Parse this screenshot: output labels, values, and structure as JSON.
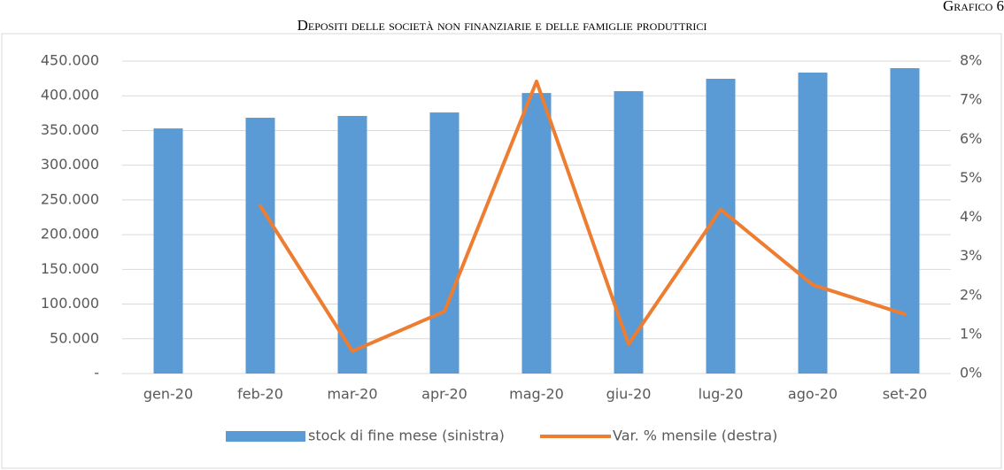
{
  "chart_data": {
    "type": "bar_line",
    "corner_label": "Grafico 6",
    "title": "Depositi delle società non finanziarie e delle famiglie produttrici",
    "categories": [
      "gen-20",
      "feb-20",
      "mar-20",
      "apr-20",
      "mag-20",
      "giu-20",
      "lug-20",
      "ago-20",
      "set-20"
    ],
    "series": [
      {
        "name": "stock di fine mese (sinistra)",
        "type": "bar",
        "color": "#5b9bd5",
        "axis": "y",
        "values": [
          353000,
          368400,
          371000,
          376000,
          404000,
          406700,
          424500,
          433400,
          439800
        ]
      },
      {
        "name": "Var. % mensile (destra)",
        "type": "line",
        "color": "#ed7d31",
        "axis": "y2",
        "values": [
          null,
          4.29,
          0.57,
          1.59,
          7.48,
          0.75,
          4.2,
          2.27,
          1.52
        ]
      }
    ],
    "ylim": [
      0,
      450000
    ],
    "yticks": [
      {
        "value": 0,
        "label": "-"
      },
      {
        "value": 50000,
        "label": "50.000"
      },
      {
        "value": 100000,
        "label": "100.000"
      },
      {
        "value": 150000,
        "label": "150.000"
      },
      {
        "value": 200000,
        "label": "200.000"
      },
      {
        "value": 250000,
        "label": "250.000"
      },
      {
        "value": 300000,
        "label": "300.000"
      },
      {
        "value": 350000,
        "label": "350.000"
      },
      {
        "value": 400000,
        "label": "400.000"
      },
      {
        "value": 450000,
        "label": "450.000"
      }
    ],
    "y2lim": [
      0,
      8
    ],
    "y2ticks": [
      {
        "value": 0,
        "label": "0%"
      },
      {
        "value": 1,
        "label": "1%"
      },
      {
        "value": 2,
        "label": "2%"
      },
      {
        "value": 3,
        "label": "3%"
      },
      {
        "value": 4,
        "label": "4%"
      },
      {
        "value": 5,
        "label": "5%"
      },
      {
        "value": 6,
        "label": "6%"
      },
      {
        "value": 7,
        "label": "7%"
      },
      {
        "value": 8,
        "label": "8%"
      }
    ],
    "grid": true,
    "legend": "bottom"
  }
}
